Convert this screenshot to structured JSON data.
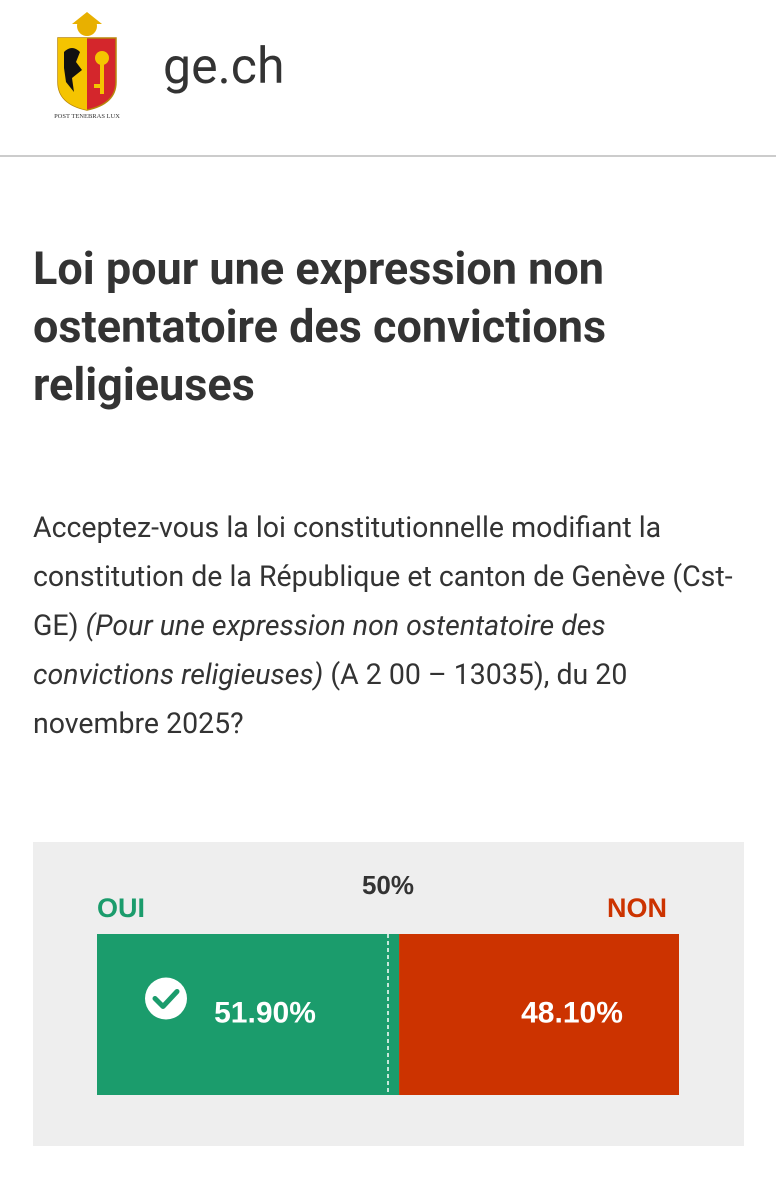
{
  "header": {
    "site": "ge.ch",
    "motto": "POST TENEBRAS LUX"
  },
  "title": "Loi pour une expression non ostentatoire des convictions religieuses",
  "question": [
    "Acceptez-vous la loi constitutionnelle modifiant la constitution de la République et canton de Genève (Cst-GE) ",
    "(Pour une expression non ostentatoire des convictions religieuses)",
    " (A 2 00 – 13035), du 20 novembre 2025?"
  ],
  "result": {
    "midpoint": {
      "value": 50,
      "label": "50%"
    },
    "yes": {
      "label": "OUI",
      "value": 51.9,
      "value_label": "51.90%",
      "color": "#1b9c6c",
      "accepted": true
    },
    "no": {
      "label": "NON",
      "value": 48.1,
      "value_label": "48.10%",
      "color": "#cc3300"
    }
  }
}
